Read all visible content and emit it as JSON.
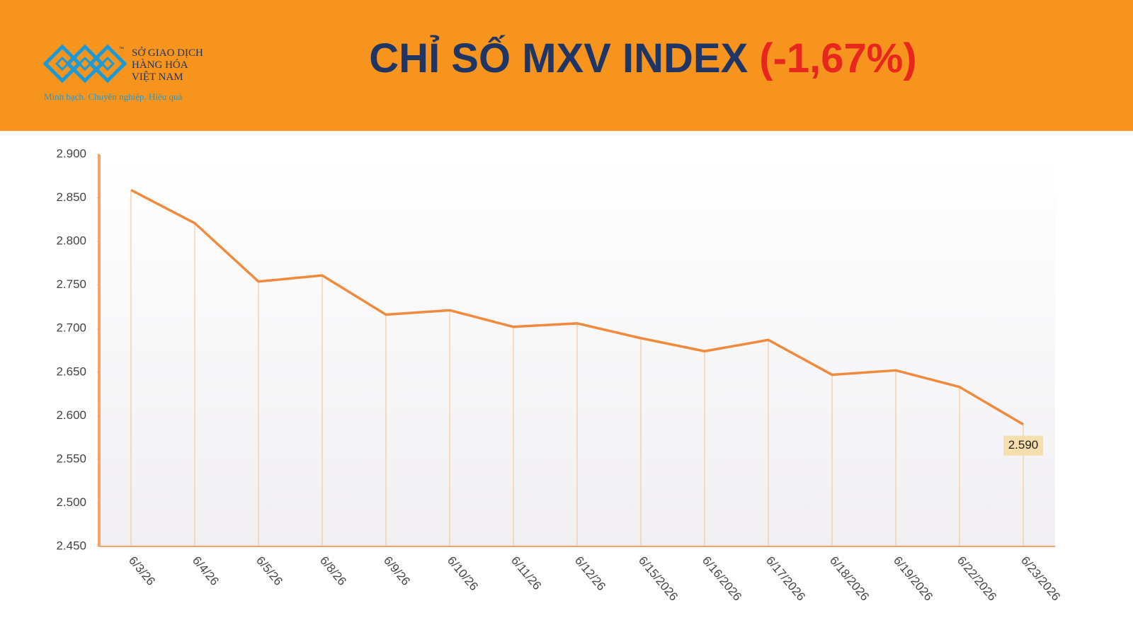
{
  "header": {
    "logo_lines": [
      "SỞ GIAO DỊCH",
      "HÀNG HÓA",
      "VIỆT NAM"
    ],
    "trademark": "™",
    "slogan": "Minh bạch. Chuyên nghiệp. Hiệu quả"
  },
  "chart_data": {
    "type": "line",
    "title": "CHỈ SỐ MXV INDEX",
    "title_change": "(-1,67%)",
    "categories": [
      "6/3/26",
      "6/4/26",
      "6/5/26",
      "6/8/26",
      "6/9/26",
      "6/10/26",
      "6/11/26",
      "6/12/26",
      "6/15/2026",
      "6/16/2026",
      "6/17/2026",
      "6/18/2026",
      "6/19/2026",
      "6/22/2026",
      "6/23/2026"
    ],
    "values": [
      2859,
      2821,
      2754,
      2761,
      2716,
      2721,
      2702,
      2706,
      2689,
      2674,
      2687,
      2647,
      2652,
      2633,
      2590
    ],
    "value_labels": [
      null,
      null,
      null,
      null,
      null,
      null,
      null,
      null,
      null,
      null,
      null,
      null,
      null,
      null,
      "2.590"
    ],
    "color": "#f08a3c",
    "ylim": [
      2450,
      2900
    ],
    "yticks": [
      {
        "value": 2450,
        "label": "2.450"
      },
      {
        "value": 2500,
        "label": "2.500"
      },
      {
        "value": 2550,
        "label": "2.550"
      },
      {
        "value": 2600,
        "label": "2.600"
      },
      {
        "value": 2650,
        "label": "2.650"
      },
      {
        "value": 2700,
        "label": "2.700"
      },
      {
        "value": 2750,
        "label": "2.750"
      },
      {
        "value": 2800,
        "label": "2.800"
      },
      {
        "value": 2850,
        "label": "2.850"
      },
      {
        "value": 2900,
        "label": "2.900"
      }
    ]
  }
}
